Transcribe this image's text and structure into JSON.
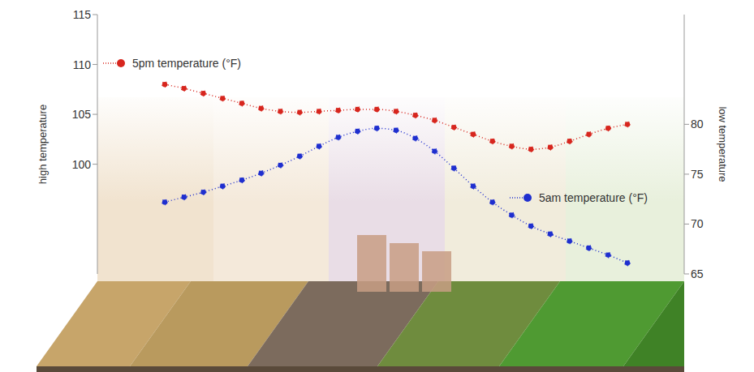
{
  "chart_data": {
    "type": "line",
    "categories": [
      null,
      null,
      null,
      null,
      null,
      null,
      null,
      null,
      null,
      null,
      null,
      null,
      null,
      null,
      null,
      null,
      null,
      null,
      null,
      null,
      null,
      null,
      null,
      null,
      null
    ],
    "series": [
      {
        "name": "5pm temperature (°F)",
        "color": "#d7261e",
        "marker": "circle",
        "line_style": "dotted",
        "values": [
          108.0,
          107.6,
          107.1,
          106.6,
          106.1,
          105.6,
          105.3,
          105.2,
          105.3,
          105.4,
          105.5,
          105.5,
          105.3,
          104.9,
          104.4,
          103.7,
          103.0,
          102.3,
          101.8,
          101.5,
          101.7,
          102.3,
          103.0,
          103.6,
          104.0
        ]
      },
      {
        "name": "5am temperature (°F)",
        "color": "#1f2fcf",
        "marker": "circle",
        "line_style": "dotted",
        "axis": "y2",
        "values": [
          72.2,
          72.7,
          73.2,
          73.8,
          74.4,
          75.1,
          75.9,
          76.8,
          77.8,
          78.7,
          79.3,
          79.6,
          79.4,
          78.6,
          77.3,
          75.6,
          73.8,
          72.2,
          70.9,
          69.8,
          69.0,
          68.3,
          67.6,
          66.9,
          66.1
        ]
      }
    ],
    "y_label": "high temperature",
    "y2_label": "low temperature",
    "ylim": [
      89,
      115
    ],
    "yticks": [
      100,
      105,
      110,
      115
    ],
    "y2lim": [
      65,
      91
    ],
    "y2ticks": [
      65,
      70,
      75,
      80
    ],
    "grid": false
  }
}
